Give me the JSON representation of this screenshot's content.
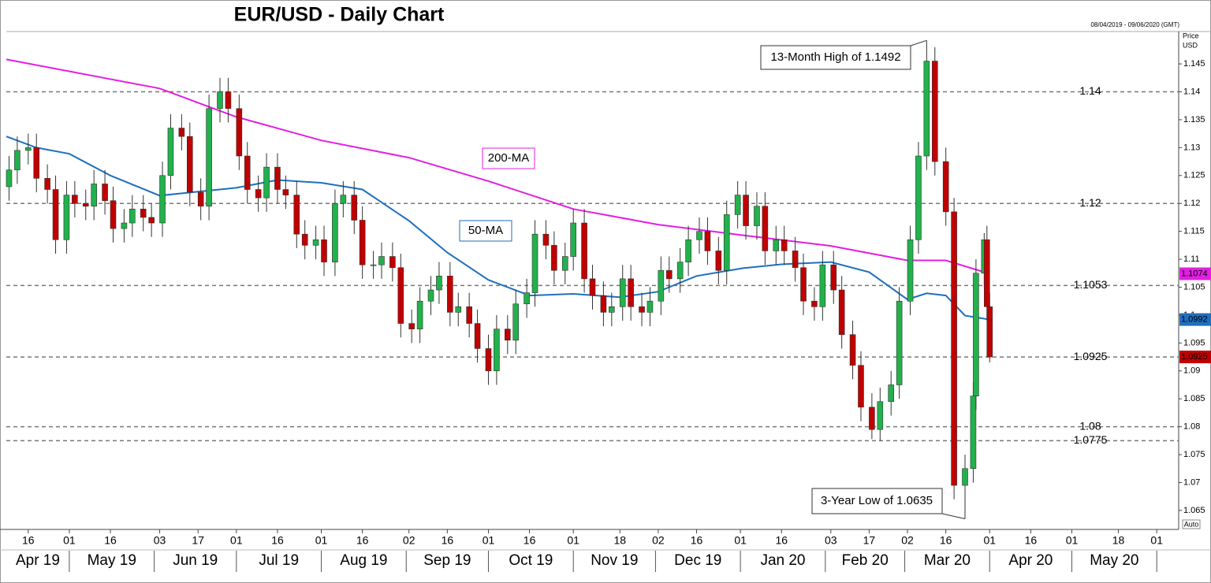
{
  "chart_data": {
    "type": "candlestick",
    "title": "EUR/USD - Daily Chart",
    "subtitle": "08/04/2019 - 09/06/2020 (GMT)",
    "y_axis_label_lines": [
      "Price",
      "USD"
    ],
    "corner_label": "Auto",
    "up_color": "#22b14c",
    "down_color": "#c00000",
    "xlim": [
      "2019-04-08",
      "2020-06-09"
    ],
    "ylim": [
      1.0616,
      1.1508
    ],
    "yticks": [
      1.065,
      1.07,
      1.075,
      1.08,
      1.085,
      1.09,
      1.095,
      1.1,
      1.105,
      1.11,
      1.115,
      1.12,
      1.125,
      1.13,
      1.135,
      1.14,
      1.145
    ],
    "xticks": [
      {
        "value": "2019-04-16",
        "label": "16"
      },
      {
        "value": "2019-05-01",
        "label": "01"
      },
      {
        "value": "2019-05-16",
        "label": "16"
      },
      {
        "value": "2019-06-03",
        "label": "03"
      },
      {
        "value": "2019-06-17",
        "label": "17"
      },
      {
        "value": "2019-07-01",
        "label": "01"
      },
      {
        "value": "2019-07-16",
        "label": "16"
      },
      {
        "value": "2019-08-01",
        "label": "01"
      },
      {
        "value": "2019-08-16",
        "label": "16"
      },
      {
        "value": "2019-09-02",
        "label": "02"
      },
      {
        "value": "2019-09-16",
        "label": "16"
      },
      {
        "value": "2019-10-01",
        "label": "01"
      },
      {
        "value": "2019-10-16",
        "label": "16"
      },
      {
        "value": "2019-11-01",
        "label": "01"
      },
      {
        "value": "2019-11-18",
        "label": "18"
      },
      {
        "value": "2019-12-02",
        "label": "02"
      },
      {
        "value": "2019-12-16",
        "label": "16"
      },
      {
        "value": "2020-01-01",
        "label": "01"
      },
      {
        "value": "2020-01-16",
        "label": "16"
      },
      {
        "value": "2020-02-03",
        "label": "03"
      },
      {
        "value": "2020-02-17",
        "label": "17"
      },
      {
        "value": "2020-03-02",
        "label": "02"
      },
      {
        "value": "2020-03-16",
        "label": "16"
      },
      {
        "value": "2020-04-01",
        "label": "01"
      },
      {
        "value": "2020-04-16",
        "label": "16"
      },
      {
        "value": "2020-05-01",
        "label": "01"
      },
      {
        "value": "2020-05-18",
        "label": "18"
      },
      {
        "value": "2020-06-01",
        "label": "01"
      }
    ],
    "month_labels": [
      {
        "value": "2019-04",
        "label": "Apr 19"
      },
      {
        "value": "2019-05",
        "label": "May 19"
      },
      {
        "value": "2019-06",
        "label": "Jun 19"
      },
      {
        "value": "2019-07",
        "label": "Jul 19"
      },
      {
        "value": "2019-08",
        "label": "Aug 19"
      },
      {
        "value": "2019-09",
        "label": "Sep 19"
      },
      {
        "value": "2019-10",
        "label": "Oct 19"
      },
      {
        "value": "2019-11",
        "label": "Nov 19"
      },
      {
        "value": "2019-12",
        "label": "Dec 19"
      },
      {
        "value": "2020-01",
        "label": "Jan 20"
      },
      {
        "value": "2020-02",
        "label": "Feb 20"
      },
      {
        "value": "2020-03",
        "label": "Mar 20"
      },
      {
        "value": "2020-04",
        "label": "Apr 20"
      },
      {
        "value": "2020-05",
        "label": "May 20"
      }
    ],
    "x": [
      "2019-04-09",
      "2019-04-12",
      "2019-04-16",
      "2019-04-19",
      "2019-04-23",
      "2019-04-26",
      "2019-04-30",
      "2019-05-03",
      "2019-05-07",
      "2019-05-10",
      "2019-05-14",
      "2019-05-17",
      "2019-05-21",
      "2019-05-24",
      "2019-05-28",
      "2019-05-31",
      "2019-06-04",
      "2019-06-07",
      "2019-06-11",
      "2019-06-14",
      "2019-06-18",
      "2019-06-21",
      "2019-06-25",
      "2019-06-28",
      "2019-07-02",
      "2019-07-05",
      "2019-07-09",
      "2019-07-12",
      "2019-07-16",
      "2019-07-19",
      "2019-07-23",
      "2019-07-26",
      "2019-07-30",
      "2019-08-02",
      "2019-08-06",
      "2019-08-09",
      "2019-08-13",
      "2019-08-16",
      "2019-08-20",
      "2019-08-23",
      "2019-08-27",
      "2019-08-30",
      "2019-09-03",
      "2019-09-06",
      "2019-09-10",
      "2019-09-13",
      "2019-09-17",
      "2019-09-20",
      "2019-09-24",
      "2019-09-27",
      "2019-10-01",
      "2019-10-04",
      "2019-10-08",
      "2019-10-11",
      "2019-10-15",
      "2019-10-18",
      "2019-10-22",
      "2019-10-25",
      "2019-10-29",
      "2019-11-01",
      "2019-11-05",
      "2019-11-08",
      "2019-11-12",
      "2019-11-15",
      "2019-11-19",
      "2019-11-22",
      "2019-11-26",
      "2019-11-29",
      "2019-12-03",
      "2019-12-06",
      "2019-12-10",
      "2019-12-13",
      "2019-12-17",
      "2019-12-20",
      "2019-12-24",
      "2019-12-27",
      "2019-12-31",
      "2020-01-03",
      "2020-01-07",
      "2020-01-10",
      "2020-01-14",
      "2020-01-17",
      "2020-01-21",
      "2020-01-24",
      "2020-01-28",
      "2020-01-31",
      "2020-02-04",
      "2020-02-07",
      "2020-02-11",
      "2020-02-14",
      "2020-02-18",
      "2020-02-21",
      "2020-02-25",
      "2020-02-28",
      "2020-03-03",
      "2020-03-06",
      "2020-03-09",
      "2020-03-12",
      "2020-03-16",
      "2020-03-19",
      "2020-03-23",
      "2020-03-26",
      "2020-03-27",
      "2020-03-30",
      "2020-03-31",
      "2020-04-01"
    ],
    "open": [
      1.123,
      1.126,
      1.1295,
      1.13,
      1.1245,
      1.1225,
      1.1135,
      1.1215,
      1.12,
      1.1195,
      1.1235,
      1.1205,
      1.1155,
      1.1165,
      1.119,
      1.1175,
      1.1165,
      1.125,
      1.1335,
      1.132,
      1.122,
      1.1195,
      1.137,
      1.14,
      1.137,
      1.1285,
      1.1225,
      1.121,
      1.1265,
      1.1225,
      1.1215,
      1.1145,
      1.1125,
      1.1135,
      1.1095,
      1.12,
      1.1215,
      1.117,
      1.109,
      1.109,
      1.1105,
      1.1085,
      1.0985,
      1.0975,
      1.1025,
      1.1045,
      1.107,
      1.1005,
      1.1015,
      1.0985,
      1.094,
      1.09,
      1.0975,
      1.0955,
      1.102,
      1.104,
      1.1145,
      1.1125,
      1.108,
      1.1105,
      1.1165,
      1.1065,
      1.1035,
      1.1005,
      1.1015,
      1.1065,
      1.1015,
      1.1005,
      1.1025,
      1.108,
      1.1065,
      1.1095,
      1.1135,
      1.115,
      1.1115,
      1.108,
      1.118,
      1.1215,
      1.116,
      1.1195,
      1.1115,
      1.1135,
      1.1115,
      1.1085,
      1.1025,
      1.1015,
      1.109,
      1.1045,
      1.0965,
      1.091,
      1.0835,
      1.0795,
      1.0845,
      1.0875,
      1.1025,
      1.1135,
      1.1285,
      1.1455,
      1.1275,
      1.1185,
      1.0695,
      1.0725,
      1.0855,
      1.1075,
      1.1135,
      1.1015
    ],
    "high": [
      1.1285,
      1.132,
      1.1325,
      1.1325,
      1.127,
      1.125,
      1.124,
      1.124,
      1.1225,
      1.126,
      1.126,
      1.123,
      1.119,
      1.1215,
      1.1215,
      1.12,
      1.1275,
      1.136,
      1.136,
      1.1345,
      1.1245,
      1.1395,
      1.1425,
      1.1425,
      1.1395,
      1.131,
      1.125,
      1.129,
      1.129,
      1.125,
      1.124,
      1.117,
      1.116,
      1.116,
      1.1225,
      1.124,
      1.124,
      1.1195,
      1.1115,
      1.113,
      1.113,
      1.111,
      1.101,
      1.105,
      1.107,
      1.1095,
      1.1095,
      1.104,
      1.104,
      1.101,
      1.0965,
      1.1,
      1.1,
      1.1045,
      1.1065,
      1.117,
      1.117,
      1.115,
      1.113,
      1.119,
      1.119,
      1.109,
      1.106,
      1.104,
      1.109,
      1.109,
      1.104,
      1.105,
      1.1105,
      1.1105,
      1.112,
      1.116,
      1.1175,
      1.1175,
      1.114,
      1.1205,
      1.124,
      1.124,
      1.122,
      1.122,
      1.116,
      1.116,
      1.114,
      1.111,
      1.105,
      1.1115,
      1.1115,
      1.107,
      1.099,
      1.0935,
      1.086,
      1.087,
      1.09,
      1.105,
      1.116,
      1.131,
      1.1492,
      1.148,
      1.13,
      1.121,
      1.075,
      1.088,
      1.11,
      1.1147,
      1.116,
      1.104
    ],
    "low": [
      1.1205,
      1.1235,
      1.127,
      1.122,
      1.12,
      1.111,
      1.111,
      1.1175,
      1.117,
      1.117,
      1.118,
      1.113,
      1.113,
      1.114,
      1.115,
      1.114,
      1.114,
      1.1225,
      1.1295,
      1.1195,
      1.117,
      1.117,
      1.1345,
      1.1345,
      1.126,
      1.12,
      1.1185,
      1.1185,
      1.12,
      1.119,
      1.112,
      1.11,
      1.11,
      1.107,
      1.107,
      1.1175,
      1.1145,
      1.1065,
      1.1065,
      1.1065,
      1.106,
      1.096,
      1.095,
      1.095,
      1.1,
      1.102,
      1.098,
      1.098,
      1.096,
      1.0915,
      1.0875,
      1.0875,
      1.093,
      1.093,
      1.0995,
      1.1015,
      1.11,
      1.1055,
      1.1055,
      1.108,
      1.104,
      1.101,
      1.098,
      1.098,
      1.099,
      1.099,
      1.098,
      1.098,
      1.1,
      1.104,
      1.104,
      1.107,
      1.111,
      1.109,
      1.1055,
      1.1055,
      1.1155,
      1.1135,
      1.1135,
      1.109,
      1.109,
      1.109,
      1.106,
      1.1,
      1.099,
      1.099,
      1.102,
      1.094,
      1.0885,
      1.081,
      1.0778,
      1.0775,
      1.082,
      1.085,
      1.1,
      1.111,
      1.126,
      1.125,
      1.116,
      1.067,
      1.0635,
      1.07,
      1.083,
      1.105,
      1.099,
      1.0915
    ],
    "close": [
      1.126,
      1.1295,
      1.13,
      1.1245,
      1.1225,
      1.1135,
      1.1215,
      1.12,
      1.1195,
      1.1235,
      1.1205,
      1.1155,
      1.1165,
      1.119,
      1.1175,
      1.1165,
      1.125,
      1.1335,
      1.132,
      1.122,
      1.1195,
      1.137,
      1.14,
      1.137,
      1.1285,
      1.1225,
      1.121,
      1.1265,
      1.1225,
      1.1215,
      1.1145,
      1.1125,
      1.1135,
      1.1095,
      1.12,
      1.1215,
      1.117,
      1.109,
      1.109,
      1.1105,
      1.1085,
      1.0985,
      1.0975,
      1.1025,
      1.1045,
      1.107,
      1.1005,
      1.1015,
      1.0985,
      1.094,
      1.09,
      1.0975,
      1.0955,
      1.102,
      1.104,
      1.1145,
      1.1125,
      1.108,
      1.1105,
      1.1165,
      1.1065,
      1.1035,
      1.1005,
      1.1015,
      1.1065,
      1.1015,
      1.1005,
      1.1025,
      1.108,
      1.1065,
      1.1095,
      1.1135,
      1.115,
      1.1115,
      1.108,
      1.118,
      1.1215,
      1.116,
      1.1195,
      1.1115,
      1.1135,
      1.1115,
      1.1085,
      1.1025,
      1.1015,
      1.109,
      1.1045,
      1.0965,
      1.091,
      1.0835,
      1.0795,
      1.0845,
      1.0875,
      1.1025,
      1.1135,
      1.1285,
      1.1455,
      1.1275,
      1.1185,
      1.0695,
      1.0725,
      1.0855,
      1.1075,
      1.1135,
      1.1015,
      1.0925
    ],
    "series": [
      {
        "name": "200-MA",
        "color": "#e21fe2",
        "x": [
          "2019-04-08",
          "2019-06-03",
          "2019-07-01",
          "2019-08-01",
          "2019-09-02",
          "2019-10-01",
          "2019-11-01",
          "2019-12-02",
          "2020-01-02",
          "2020-02-03",
          "2020-03-02",
          "2020-03-16",
          "2020-04-01"
        ],
        "values": [
          1.1458,
          1.1406,
          1.1355,
          1.1313,
          1.1282,
          1.124,
          1.119,
          1.1162,
          1.1143,
          1.1124,
          1.1098,
          1.1098,
          1.1074
        ]
      },
      {
        "name": "50-MA",
        "color": "#1f6fbf",
        "x": [
          "2019-04-08",
          "2019-04-19",
          "2019-05-01",
          "2019-05-16",
          "2019-06-03",
          "2019-06-17",
          "2019-07-01",
          "2019-07-16",
          "2019-08-01",
          "2019-08-16",
          "2019-09-02",
          "2019-09-16",
          "2019-10-01",
          "2019-10-16",
          "2019-11-01",
          "2019-11-18",
          "2019-12-02",
          "2019-12-16",
          "2020-01-02",
          "2020-01-16",
          "2020-02-03",
          "2020-02-17",
          "2020-03-02",
          "2020-03-09",
          "2020-03-16",
          "2020-03-23",
          "2020-04-01"
        ],
        "values": [
          1.132,
          1.13,
          1.1289,
          1.125,
          1.1214,
          1.1221,
          1.1228,
          1.1242,
          1.1237,
          1.1225,
          1.1169,
          1.1112,
          1.1063,
          1.1035,
          1.1038,
          1.1032,
          1.1042,
          1.107,
          1.1084,
          1.1091,
          1.1095,
          1.1077,
          1.1028,
          1.1039,
          1.1035,
          1.0999,
          1.0992
        ]
      }
    ],
    "levels": [
      1.14,
      1.12,
      1.1053,
      1.0925,
      1.08,
      1.0775
    ],
    "level_label_color": "#1c1c9c",
    "annotations": [
      {
        "text": "13-Month High of 1.1492"
      },
      {
        "text": "3-Year Low of 1.0635"
      }
    ]
  }
}
